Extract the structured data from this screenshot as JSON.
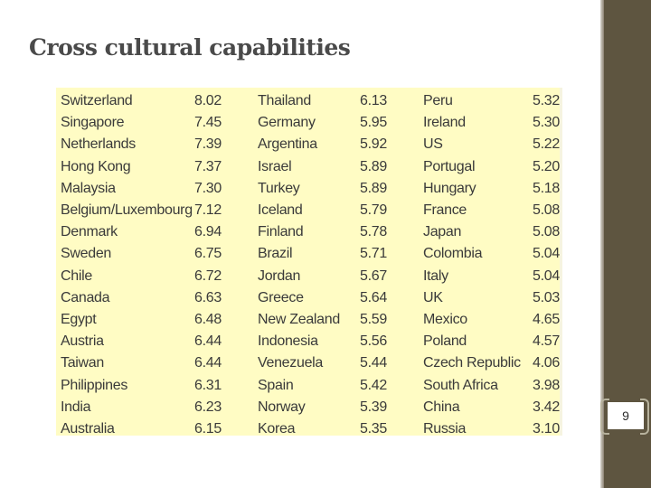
{
  "slide": {
    "title": "Cross cultural capabilities",
    "page_number": "9"
  },
  "table": {
    "rows": [
      [
        "Switzerland",
        "8.02",
        "Thailand",
        "6.13",
        "Peru",
        "5.32"
      ],
      [
        "Singapore",
        "7.45",
        "Germany",
        "5.95",
        "Ireland",
        "5.30"
      ],
      [
        "Netherlands",
        "7.39",
        "Argentina",
        "5.92",
        "US",
        "5.22"
      ],
      [
        "Hong Kong",
        "7.37",
        "Israel",
        "5.89",
        "Portugal",
        "5.20"
      ],
      [
        "Malaysia",
        "7.30",
        "Turkey",
        "5.89",
        "Hungary",
        "5.18"
      ],
      [
        "Belgium/Luxembourg",
        "7.12",
        "Iceland",
        "5.79",
        "France",
        "5.08"
      ],
      [
        "Denmark",
        "6.94",
        "Finland",
        "5.78",
        "Japan",
        "5.08"
      ],
      [
        "Sweden",
        "6.75",
        "Brazil",
        "5.71",
        "Colombia",
        "5.04"
      ],
      [
        "Chile",
        "6.72",
        "Jordan",
        "5.67",
        "Italy",
        "5.04"
      ],
      [
        "Canada",
        "6.63",
        "Greece",
        "5.64",
        "UK",
        "5.03"
      ],
      [
        "Egypt",
        "6.48",
        "New Zealand",
        "5.59",
        "Mexico",
        "4.65"
      ],
      [
        "Austria",
        "6.44",
        "Indonesia",
        "5.56",
        "Poland",
        "4.57"
      ],
      [
        "Taiwan",
        "6.44",
        "Venezuela",
        "5.44",
        "Czech Republic",
        "4.06"
      ],
      [
        "Philippines",
        "6.31",
        "Spain",
        "5.42",
        "South Africa",
        "3.98"
      ],
      [
        "India",
        "6.23",
        "Norway",
        "5.39",
        "China",
        "3.42"
      ],
      [
        "Australia",
        "6.15",
        "Korea",
        "5.35",
        "Russia",
        "3.10"
      ]
    ]
  },
  "colors": {
    "table_background": "#fffcc4",
    "sidebar": "#5e5540",
    "text": "#3a3a3a"
  }
}
